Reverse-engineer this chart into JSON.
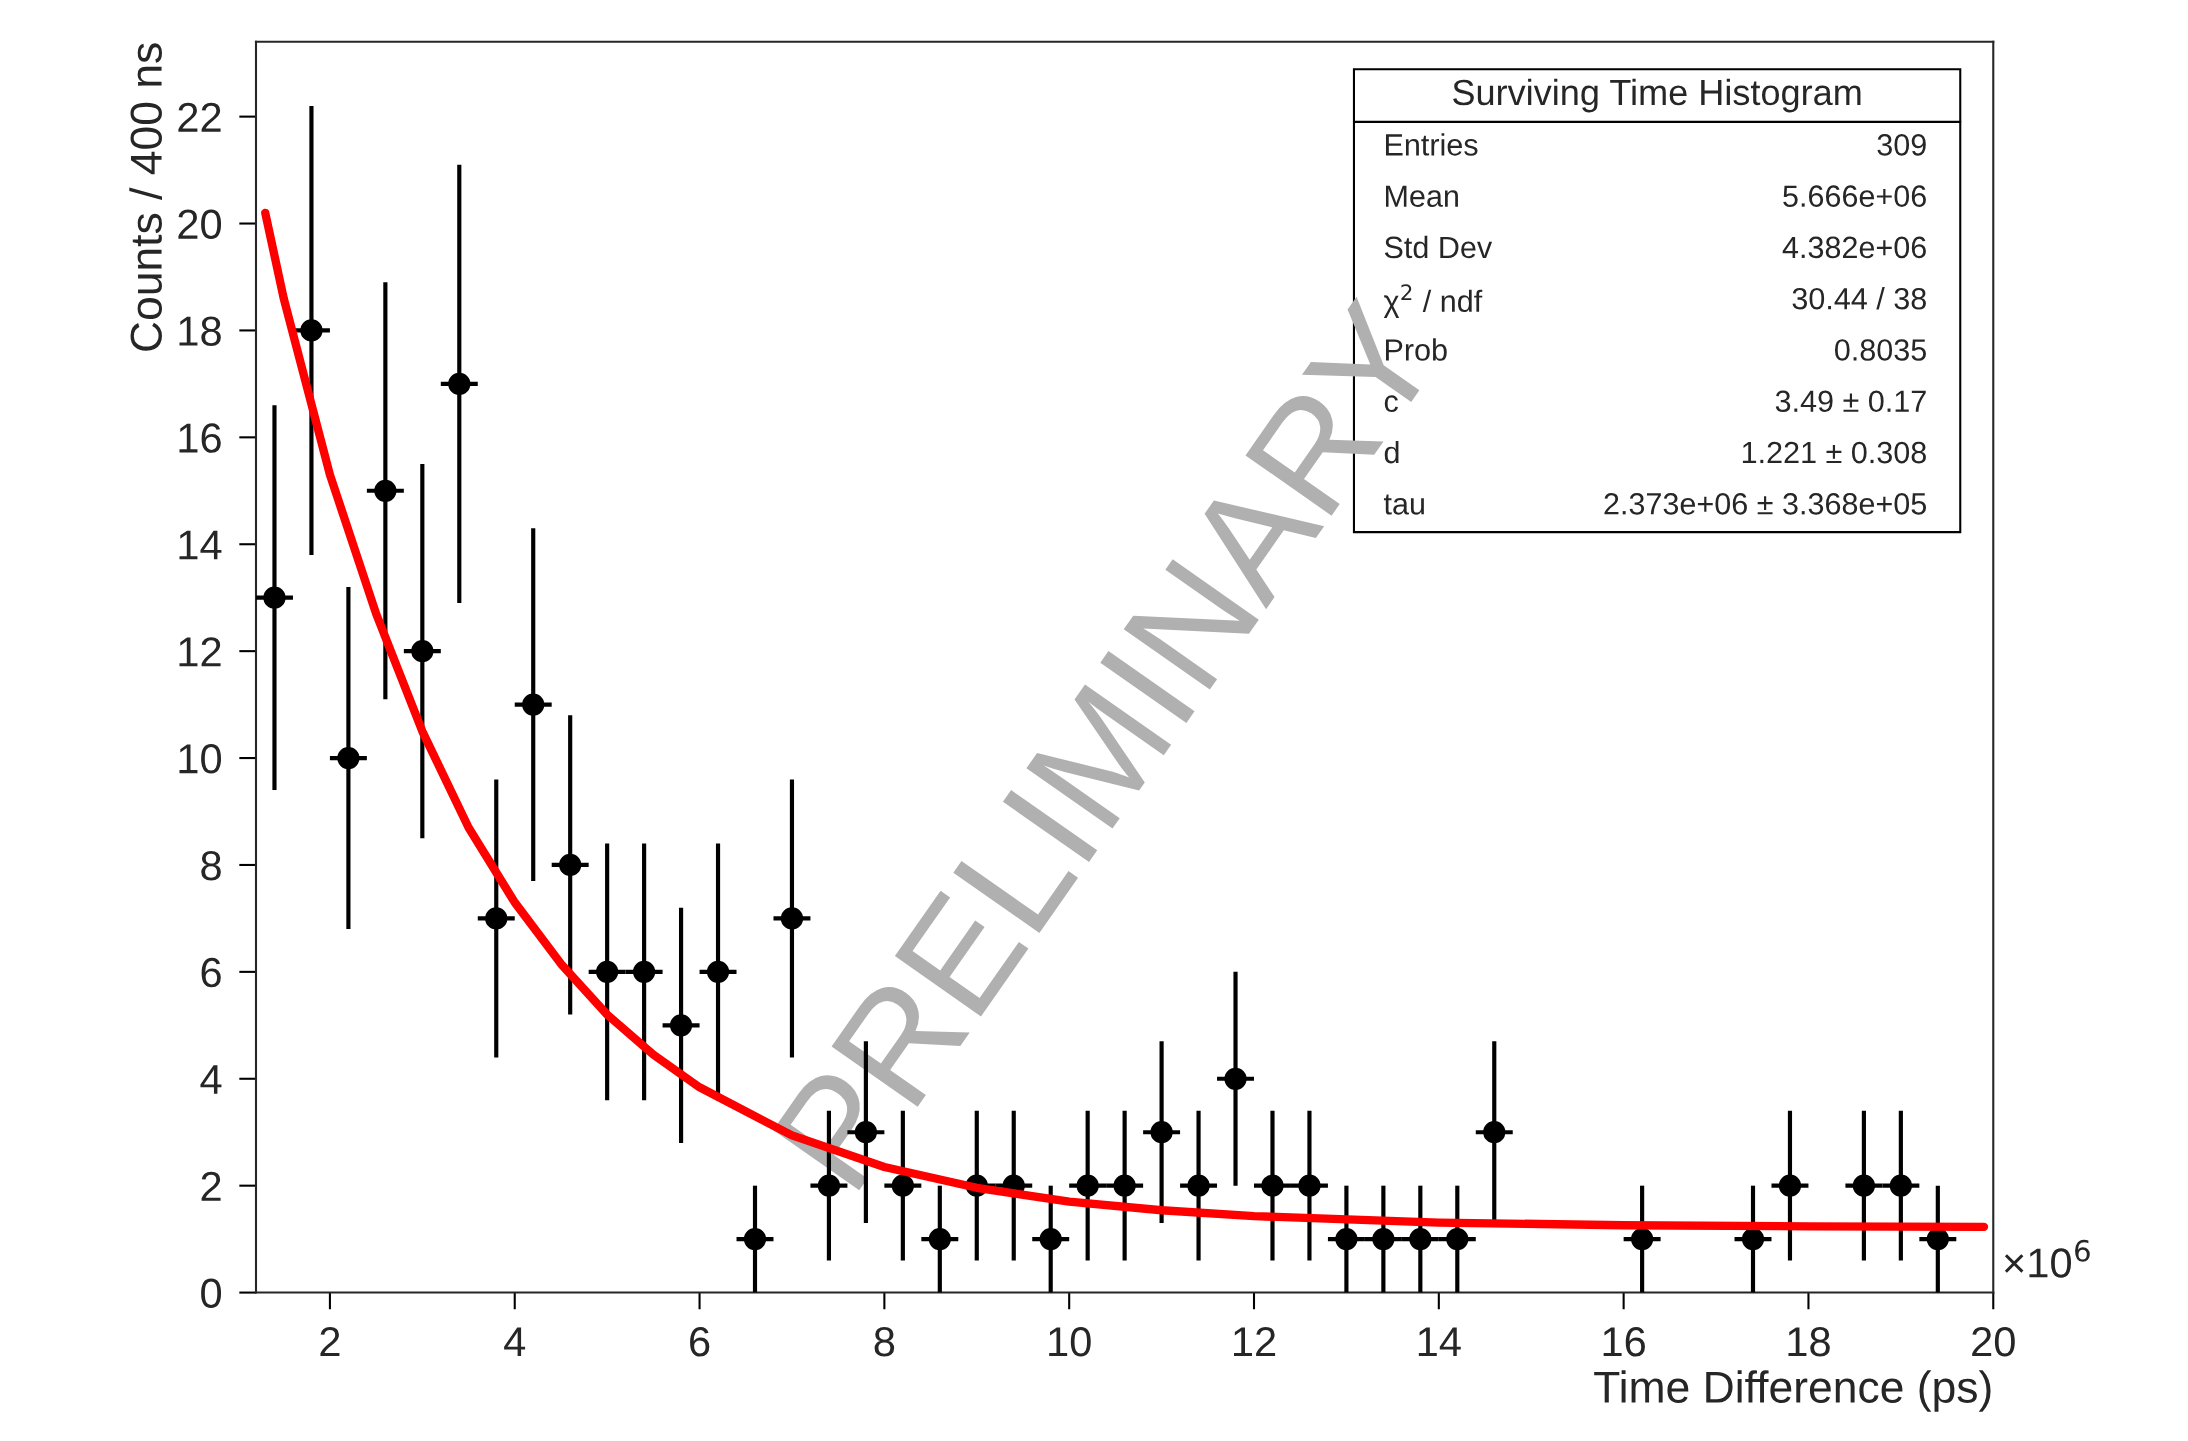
{
  "chart_data": {
    "type": "scatter",
    "title": "Surviving Time Histogram",
    "xlabel": "Time Difference (ps)",
    "ylabel": "Counts / 400 ns",
    "annotations": [
      "×10$^{6}$",
      "PRELIMINARY",
      "Entries",
      "309",
      "Mean",
      "5.666e+06",
      "Std Dev",
      "4.382e+06",
      "χ$^{2}$ / ndf",
      "30.44 / 38",
      "Prob",
      "0.8035",
      "c",
      "3.49 ± 0.17",
      "d",
      "1.221 ± 0.308",
      "tau",
      "2.373e+06 ± 3.368e+05"
    ],
    "xlim": [
      1.2,
      20
    ],
    "xticks": [
      2,
      4,
      6,
      8,
      10,
      12,
      14,
      16,
      18,
      20
    ],
    "ylim": [
      0,
      23.4
    ],
    "yticks": [
      0,
      2,
      4,
      6,
      8,
      10,
      12,
      14,
      16,
      18,
      20,
      22
    ],
    "grid": false,
    "legend": false,
    "marker": "circle",
    "series": [
      {
        "color": "#000000",
        "x": [
          1.4,
          1.8,
          2.2,
          2.6,
          3.0,
          3.4,
          3.8,
          4.2,
          4.6,
          5.0,
          5.4,
          5.8,
          6.2,
          6.6,
          7.0,
          7.4,
          7.8,
          8.2,
          8.6,
          9.0,
          9.4,
          9.8,
          10.2,
          10.6,
          11.0,
          11.4,
          11.8,
          12.2,
          12.6,
          13.0,
          13.4,
          13.8,
          14.2,
          14.6,
          16.2,
          17.4,
          17.8,
          18.6,
          19.0,
          19.4
        ],
        "values": [
          13,
          18,
          10,
          15,
          12,
          17,
          7,
          11,
          8,
          6,
          6,
          5,
          6,
          1,
          7,
          2,
          3,
          2,
          1,
          2,
          2,
          1,
          2,
          2,
          3,
          2,
          4,
          2,
          2,
          1,
          1,
          1,
          1,
          3,
          1,
          1,
          2,
          2,
          2,
          1
        ],
        "errors": [
          3.6,
          4.2,
          3.2,
          3.9,
          3.5,
          4.1,
          2.6,
          3.3,
          2.8,
          2.4,
          2.4,
          2.2,
          2.4,
          1,
          2.6,
          1.4,
          1.7,
          1.4,
          1,
          1.4,
          1.4,
          1,
          1.4,
          1.4,
          1.7,
          1.4,
          2,
          1.4,
          1.4,
          1,
          1,
          1,
          1,
          1.7,
          1,
          1,
          1.4,
          1.4,
          1.4,
          1
        ],
        "xerrors": [
          0.2,
          0.2,
          0.2,
          0.2,
          0.2,
          0.2,
          0.2,
          0.2,
          0.2,
          0.2,
          0.2,
          0.2,
          0.2,
          0.2,
          0.2,
          0.2,
          0.2,
          0.2,
          0.2,
          0.2,
          0.2,
          0.2,
          0.2,
          0.2,
          0.2,
          0.2,
          0.2,
          0.2,
          0.2,
          0.2,
          0.2,
          0.2,
          0.2,
          0.2,
          0.2,
          0.2,
          0.2,
          0.2,
          0.2,
          0.2
        ]
      },
      {
        "type": "line",
        "color": "#ff0000",
        "marker": "none",
        "line_style": "solid",
        "x": [
          1.3,
          1.5,
          2,
          2.5,
          3,
          3.5,
          4,
          4.5,
          5,
          5.5,
          6,
          7,
          8,
          9,
          10,
          11,
          12,
          14,
          16,
          18,
          19.9
        ],
        "values": [
          20.2,
          18.6,
          15.3,
          12.7,
          10.5,
          8.7,
          7.3,
          6.15,
          5.2,
          4.45,
          3.84,
          2.94,
          2.35,
          1.96,
          1.7,
          1.54,
          1.43,
          1.31,
          1.26,
          1.24,
          1.23
        ]
      }
    ]
  }
}
